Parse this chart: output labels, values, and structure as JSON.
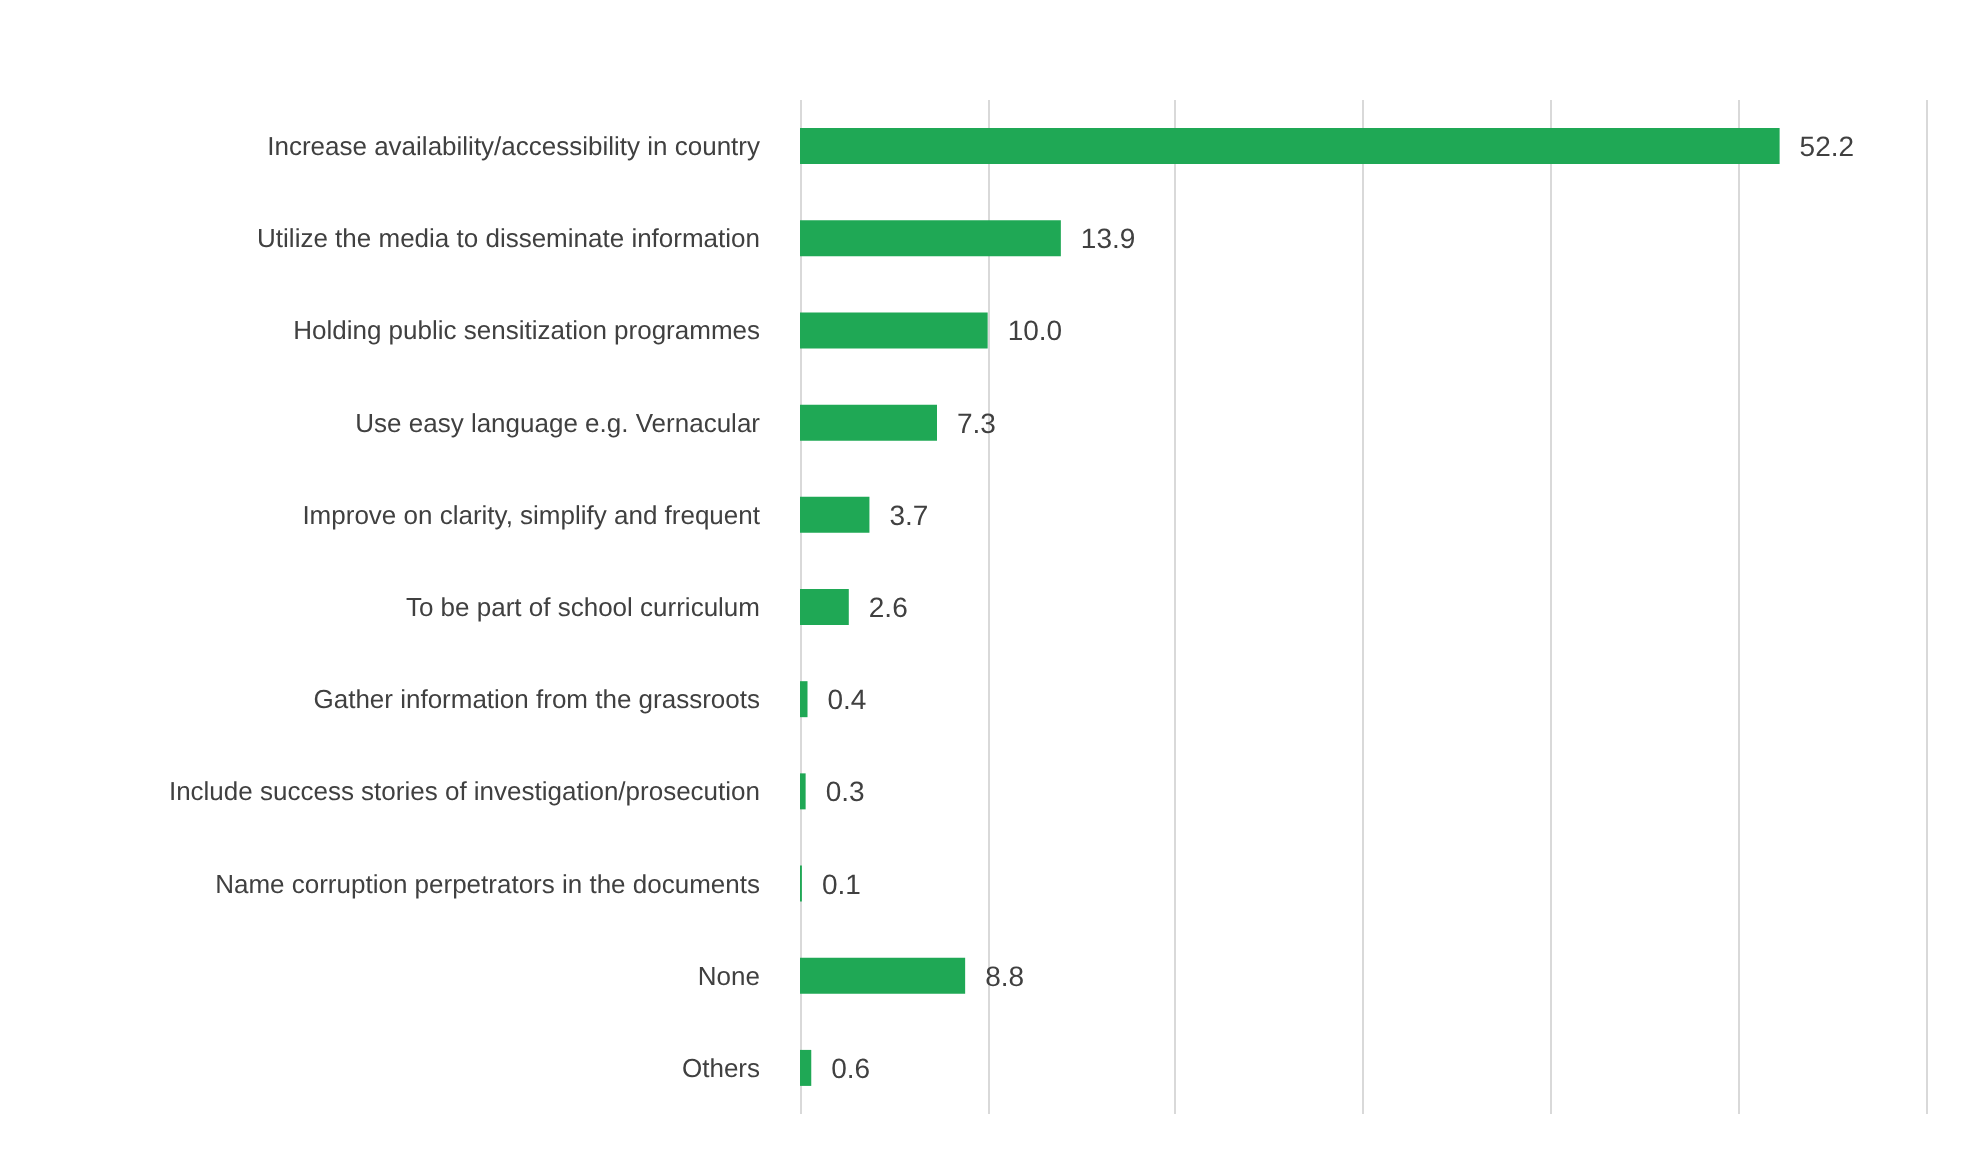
{
  "chart_data": {
    "type": "bar",
    "orientation": "horizontal",
    "categories": [
      "Increase availability/accessibility in country",
      "Utilize the media to disseminate information",
      "Holding public sensitization programmes",
      "Use easy language e.g. Vernacular",
      "Improve on clarity, simplify and frequent",
      "To be part of school curriculum",
      "Gather information from the grassroots",
      "Include success stories of investigation/prosecution",
      "Name corruption perpetrators in the documents",
      "None",
      "Others"
    ],
    "values": [
      52.2,
      13.9,
      10.0,
      7.3,
      3.7,
      2.6,
      0.4,
      0.3,
      0.1,
      8.8,
      0.6
    ],
    "value_labels": [
      "52.2",
      "13.9",
      "10.0",
      "7.3",
      "3.7",
      "2.6",
      "0.4",
      "0.3",
      "0.1",
      "8.8",
      "0.6"
    ],
    "color": "#1fa855",
    "xlim": [
      0,
      60
    ],
    "xticks": [
      {
        "value": 0,
        "label": null
      },
      {
        "value": 10,
        "label": null
      },
      {
        "value": 20,
        "label": null
      },
      {
        "value": 30,
        "label": null
      },
      {
        "value": 40,
        "label": null
      },
      {
        "value": 50,
        "label": null
      },
      {
        "value": 60,
        "label": null
      }
    ],
    "grid": "x",
    "tick_labels": "y"
  }
}
